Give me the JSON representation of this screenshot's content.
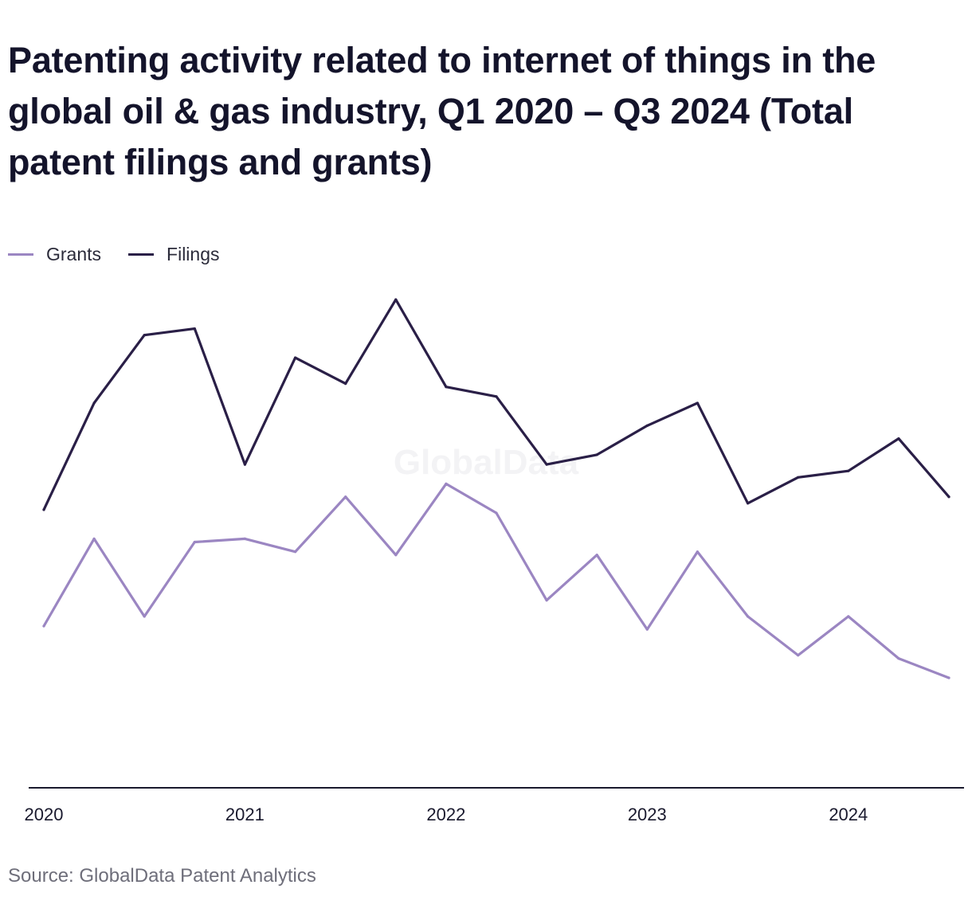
{
  "title": "Patenting activity related to internet of things in the global oil & gas industry, Q1 2020 – Q3 2024 (Total patent filings and grants)",
  "source": "Source: GlobalData Patent Analytics",
  "watermark": "GlobalData",
  "legend": {
    "placement": "top-left",
    "items": [
      {
        "name": "Grants",
        "color": "#9b86c2"
      },
      {
        "name": "Filings",
        "color": "#2a1f47"
      }
    ]
  },
  "chart_data": {
    "type": "line",
    "title": "Patenting activity related to internet of things in the global oil & gas industry, Q1 2020 – Q3 2024 (Total patent filings and grants)",
    "xlabel": "",
    "ylabel": "",
    "x": [
      "Q1 2020",
      "Q2 2020",
      "Q3 2020",
      "Q4 2020",
      "Q1 2021",
      "Q2 2021",
      "Q3 2021",
      "Q4 2021",
      "Q1 2022",
      "Q2 2022",
      "Q3 2022",
      "Q4 2022",
      "Q1 2023",
      "Q2 2023",
      "Q3 2023",
      "Q4 2023",
      "Q1 2024",
      "Q2 2024",
      "Q3 2024"
    ],
    "x_ticks": [
      "2020",
      "2021",
      "2022",
      "2023",
      "2024"
    ],
    "grid": false,
    "ylim": [
      0,
      152
    ],
    "series": [
      {
        "name": "Grants",
        "color": "#9b86c2",
        "values": [
          50,
          77,
          53,
          76,
          77,
          73,
          90,
          72,
          94,
          85,
          58,
          72,
          49,
          73,
          53,
          41,
          53,
          40,
          34
        ]
      },
      {
        "name": "Filings",
        "color": "#2a1f47",
        "values": [
          86,
          119,
          140,
          142,
          100,
          133,
          125,
          151,
          124,
          121,
          100,
          103,
          112,
          119,
          88,
          96,
          98,
          108,
          90
        ]
      }
    ]
  }
}
